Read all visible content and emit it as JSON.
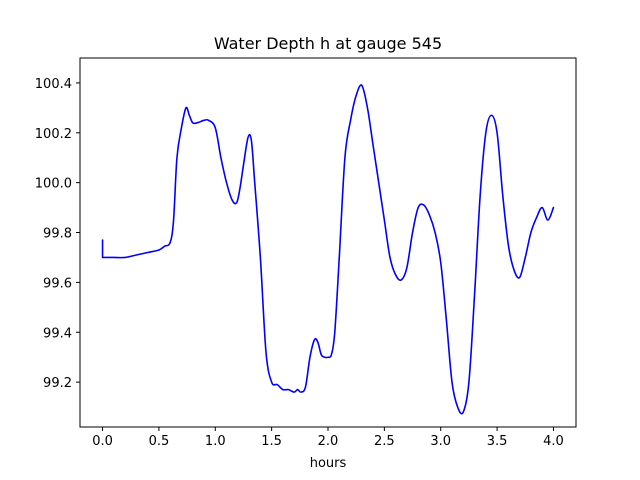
{
  "chart_data": {
    "type": "line",
    "title": "Water Depth h at gauge 545",
    "xlabel": "hours",
    "ylabel": "",
    "xlim": [
      -0.2,
      4.2
    ],
    "ylim": [
      99.02,
      100.5
    ],
    "xticks": [
      0.0,
      0.5,
      1.0,
      1.5,
      2.0,
      2.5,
      3.0,
      3.5,
      4.0
    ],
    "xtick_labels": [
      "0.0",
      "0.5",
      "1.0",
      "1.5",
      "2.0",
      "2.5",
      "3.0",
      "3.5",
      "4.0"
    ],
    "yticks": [
      99.2,
      99.4,
      99.6,
      99.8,
      100.0,
      100.2,
      100.4
    ],
    "ytick_labels": [
      "99.2",
      "99.4",
      "99.6",
      "99.8",
      "100.0",
      "100.2",
      "100.4"
    ],
    "grid": false,
    "series": [
      {
        "color": "#0000ff",
        "x": [
          0.0,
          0.0,
          0.1,
          0.2,
          0.3,
          0.4,
          0.5,
          0.55,
          0.6,
          0.63,
          0.66,
          0.7,
          0.74,
          0.77,
          0.8,
          0.84,
          0.9,
          0.94,
          1.0,
          1.05,
          1.1,
          1.15,
          1.19,
          1.22,
          1.25,
          1.29,
          1.32,
          1.35,
          1.4,
          1.45,
          1.5,
          1.55,
          1.6,
          1.65,
          1.7,
          1.73,
          1.76,
          1.8,
          1.84,
          1.88,
          1.91,
          1.94,
          1.97,
          2.0,
          2.03,
          2.06,
          2.1,
          2.15,
          2.2,
          2.25,
          2.3,
          2.35,
          2.4,
          2.45,
          2.5,
          2.55,
          2.6,
          2.65,
          2.7,
          2.75,
          2.8,
          2.85,
          2.9,
          2.95,
          3.0,
          3.05,
          3.1,
          3.15,
          3.2,
          3.25,
          3.3,
          3.35,
          3.4,
          3.45,
          3.5,
          3.55,
          3.6,
          3.65,
          3.7,
          3.75,
          3.8,
          3.85,
          3.9,
          3.95,
          4.0
        ],
        "y": [
          99.77,
          99.7,
          99.7,
          99.7,
          99.71,
          99.72,
          99.73,
          99.745,
          99.76,
          99.85,
          100.1,
          100.22,
          100.3,
          100.27,
          100.24,
          100.24,
          100.25,
          100.25,
          100.22,
          100.1,
          100.0,
          99.93,
          99.92,
          99.98,
          100.07,
          100.18,
          100.17,
          100.0,
          99.7,
          99.32,
          99.2,
          99.19,
          99.17,
          99.17,
          99.16,
          99.17,
          99.16,
          99.18,
          99.3,
          99.37,
          99.36,
          99.31,
          99.3,
          99.3,
          99.31,
          99.4,
          99.7,
          100.1,
          100.25,
          100.35,
          100.39,
          100.3,
          100.15,
          100.0,
          99.85,
          99.7,
          99.63,
          99.61,
          99.66,
          99.8,
          99.9,
          99.91,
          99.87,
          99.8,
          99.68,
          99.45,
          99.2,
          99.1,
          99.08,
          99.2,
          99.55,
          99.95,
          100.2,
          100.27,
          100.2,
          99.95,
          99.75,
          99.65,
          99.62,
          99.7,
          99.8,
          99.86,
          99.9,
          99.85,
          99.9
        ]
      }
    ]
  }
}
